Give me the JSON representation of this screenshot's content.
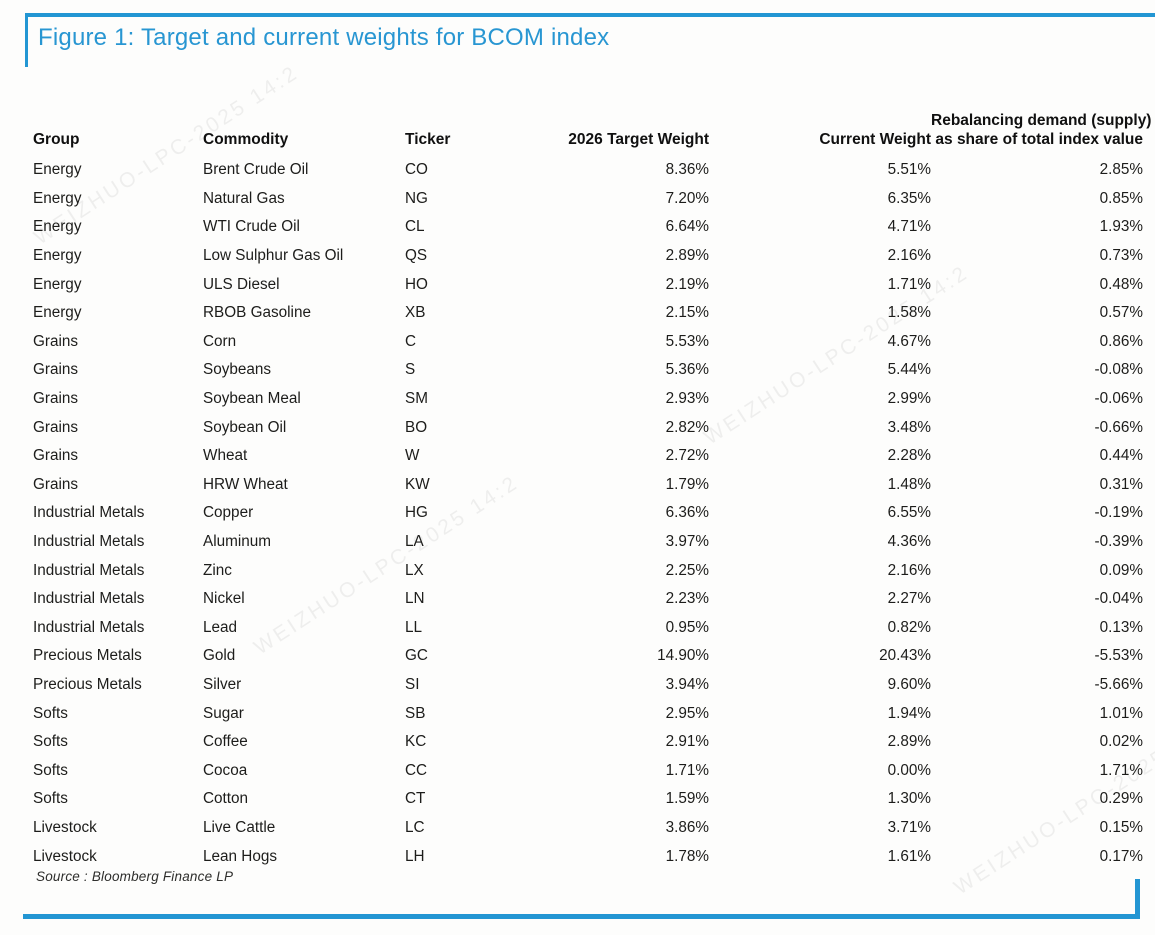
{
  "figure": {
    "title": "Figure 1: Target and current weights for BCOM index",
    "source": "Source : Bloomberg Finance LP",
    "accent_color": "#2396d3",
    "watermark": "WEIZHUO-LPC-2025 14:2"
  },
  "table": {
    "columns": [
      {
        "key": "group",
        "label": "Group",
        "align": "left"
      },
      {
        "key": "commodity",
        "label": "Commodity",
        "align": "left"
      },
      {
        "key": "ticker",
        "label": "Ticker",
        "align": "left"
      },
      {
        "key": "target",
        "label": "2026 Target Weight",
        "align": "right"
      },
      {
        "key": "current",
        "label": "Current Weight",
        "align": "right"
      },
      {
        "key": "rebalancing",
        "label": "Rebalancing demand (supply)",
        "label2": "as share of total index value",
        "align": "right"
      }
    ],
    "rows": [
      [
        "Energy",
        "Brent Crude Oil",
        "CO",
        "8.36%",
        "5.51%",
        "2.85%"
      ],
      [
        "Energy",
        "Natural Gas",
        "NG",
        "7.20%",
        "6.35%",
        "0.85%"
      ],
      [
        "Energy",
        "WTI Crude Oil",
        "CL",
        "6.64%",
        "4.71%",
        "1.93%"
      ],
      [
        "Energy",
        "Low Sulphur Gas Oil",
        "QS",
        "2.89%",
        "2.16%",
        "0.73%"
      ],
      [
        "Energy",
        "ULS Diesel",
        "HO",
        "2.19%",
        "1.71%",
        "0.48%"
      ],
      [
        "Energy",
        "RBOB Gasoline",
        "XB",
        "2.15%",
        "1.58%",
        "0.57%"
      ],
      [
        "Grains",
        "Corn",
        "C",
        "5.53%",
        "4.67%",
        "0.86%"
      ],
      [
        "Grains",
        "Soybeans",
        "S",
        "5.36%",
        "5.44%",
        "-0.08%"
      ],
      [
        "Grains",
        "Soybean Meal",
        "SM",
        "2.93%",
        "2.99%",
        "-0.06%"
      ],
      [
        "Grains",
        "Soybean Oil",
        "BO",
        "2.82%",
        "3.48%",
        "-0.66%"
      ],
      [
        "Grains",
        "Wheat",
        "W",
        "2.72%",
        "2.28%",
        "0.44%"
      ],
      [
        "Grains",
        "HRW Wheat",
        "KW",
        "1.79%",
        "1.48%",
        "0.31%"
      ],
      [
        "Industrial Metals",
        "Copper",
        "HG",
        "6.36%",
        "6.55%",
        "-0.19%"
      ],
      [
        "Industrial Metals",
        "Aluminum",
        "LA",
        "3.97%",
        "4.36%",
        "-0.39%"
      ],
      [
        "Industrial Metals",
        "Zinc",
        "LX",
        "2.25%",
        "2.16%",
        "0.09%"
      ],
      [
        "Industrial Metals",
        "Nickel",
        "LN",
        "2.23%",
        "2.27%",
        "-0.04%"
      ],
      [
        "Industrial Metals",
        "Lead",
        "LL",
        "0.95%",
        "0.82%",
        "0.13%"
      ],
      [
        "Precious Metals",
        "Gold",
        "GC",
        "14.90%",
        "20.43%",
        "-5.53%"
      ],
      [
        "Precious Metals",
        "Silver",
        "SI",
        "3.94%",
        "9.60%",
        "-5.66%"
      ],
      [
        "Softs",
        "Sugar",
        "SB",
        "2.95%",
        "1.94%",
        "1.01%"
      ],
      [
        "Softs",
        "Coffee",
        "KC",
        "2.91%",
        "2.89%",
        "0.02%"
      ],
      [
        "Softs",
        "Cocoa",
        "CC",
        "1.71%",
        "0.00%",
        "1.71%"
      ],
      [
        "Softs",
        "Cotton",
        "CT",
        "1.59%",
        "1.30%",
        "0.29%"
      ],
      [
        "Livestock",
        "Live Cattle",
        "LC",
        "3.86%",
        "3.71%",
        "0.15%"
      ],
      [
        "Livestock",
        "Lean Hogs",
        "LH",
        "1.78%",
        "1.61%",
        "0.17%"
      ]
    ]
  }
}
